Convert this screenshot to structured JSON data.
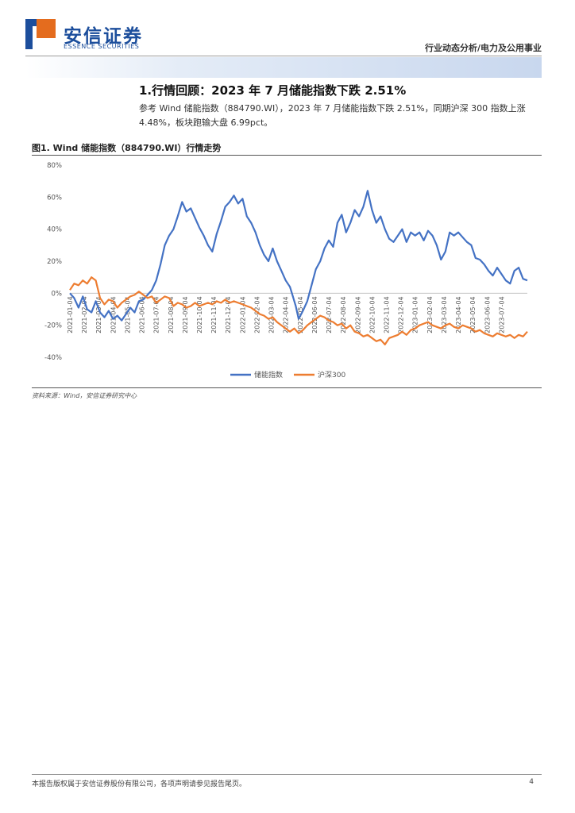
{
  "brand": {
    "name_cn": "安信证券",
    "name_en": "ESSENCE SECURITIES"
  },
  "header": {
    "category": "行业动态分析/电力及公用事业"
  },
  "section": {
    "title": "1.行情回顾：2023 年 7 月储能指数下跌 2.51%",
    "body": "参考 Wind 储能指数（884790.WI），2023 年 7 月储能指数下跌 2.51%，同期沪深 300 指数上涨 4.48%，板块跑输大盘 6.99pct。"
  },
  "figure": {
    "title": "图1. Wind 储能指数（884790.WI）行情走势",
    "source": "资料来源：Wind，安信证券研究中心"
  },
  "chart_data": {
    "type": "line",
    "title": "",
    "xlabel": "",
    "ylabel": "",
    "y_ticks": [
      "80%",
      "60%",
      "40%",
      "20%",
      "0%",
      "-20%",
      "-40%"
    ],
    "y_tick_values": [
      80,
      60,
      40,
      20,
      0,
      -20,
      -40
    ],
    "ylim": [
      -40,
      80
    ],
    "x_tick_labels": [
      "2021-01-04",
      "2021-02-04",
      "2021-03-04",
      "2021-04-04",
      "2021-05-04",
      "2021-06-04",
      "2021-07-04",
      "2021-08-04",
      "2021-09-04",
      "2021-10-04",
      "2021-11-04",
      "2021-12-04",
      "2022-01-04",
      "2022-02-04",
      "2022-03-04",
      "2022-04-04",
      "2022-05-04",
      "2022-06-04",
      "2022-07-04",
      "2022-08-04",
      "2022-09-04",
      "2022-10-04",
      "2022-11-04",
      "2022-12-04",
      "2023-01-04",
      "2023-02-04",
      "2023-03-04",
      "2023-04-04",
      "2023-05-04",
      "2023-06-04",
      "2023-07-04"
    ],
    "x_months": [
      0,
      1,
      2,
      3,
      4,
      5,
      6,
      7,
      8,
      9,
      10,
      11,
      12,
      13,
      14,
      15,
      16,
      17,
      18,
      19,
      20,
      21,
      22,
      23,
      24,
      25,
      26,
      27,
      28,
      29,
      30
    ],
    "legend_position": "bottom",
    "grid": false,
    "series": [
      {
        "name": "储能指数",
        "color": "#4472c4",
        "points": [
          [
            0,
            0
          ],
          [
            0.3,
            -3
          ],
          [
            0.6,
            -9
          ],
          [
            0.9,
            -2
          ],
          [
            1.2,
            -10
          ],
          [
            1.5,
            -12
          ],
          [
            1.8,
            -5
          ],
          [
            2.1,
            -12
          ],
          [
            2.4,
            -15
          ],
          [
            2.7,
            -11
          ],
          [
            3.0,
            -16
          ],
          [
            3.3,
            -14
          ],
          [
            3.6,
            -17
          ],
          [
            3.9,
            -13
          ],
          [
            4.2,
            -9
          ],
          [
            4.5,
            -12
          ],
          [
            4.8,
            -5
          ],
          [
            5.1,
            -4
          ],
          [
            5.4,
            -1
          ],
          [
            5.7,
            2
          ],
          [
            6.0,
            8
          ],
          [
            6.3,
            18
          ],
          [
            6.6,
            30
          ],
          [
            6.9,
            36
          ],
          [
            7.2,
            40
          ],
          [
            7.5,
            48
          ],
          [
            7.8,
            57
          ],
          [
            8.1,
            51
          ],
          [
            8.4,
            53
          ],
          [
            8.7,
            47
          ],
          [
            9.0,
            41
          ],
          [
            9.3,
            36
          ],
          [
            9.6,
            30
          ],
          [
            9.9,
            26
          ],
          [
            10.2,
            37
          ],
          [
            10.5,
            45
          ],
          [
            10.8,
            54
          ],
          [
            11.1,
            57
          ],
          [
            11.4,
            61
          ],
          [
            11.7,
            56
          ],
          [
            12.0,
            59
          ],
          [
            12.3,
            48
          ],
          [
            12.6,
            44
          ],
          [
            12.9,
            38
          ],
          [
            13.2,
            30
          ],
          [
            13.5,
            24
          ],
          [
            13.8,
            20
          ],
          [
            14.1,
            28
          ],
          [
            14.4,
            20
          ],
          [
            14.7,
            14
          ],
          [
            15.0,
            8
          ],
          [
            15.3,
            4
          ],
          [
            15.5,
            -2
          ],
          [
            15.7,
            -8
          ],
          [
            15.9,
            -16
          ],
          [
            16.2,
            -11
          ],
          [
            16.5,
            -5
          ],
          [
            16.8,
            5
          ],
          [
            17.1,
            15
          ],
          [
            17.4,
            20
          ],
          [
            17.7,
            28
          ],
          [
            18.0,
            33
          ],
          [
            18.3,
            29
          ],
          [
            18.6,
            44
          ],
          [
            18.9,
            49
          ],
          [
            19.2,
            38
          ],
          [
            19.5,
            44
          ],
          [
            19.8,
            52
          ],
          [
            20.1,
            48
          ],
          [
            20.4,
            54
          ],
          [
            20.7,
            64
          ],
          [
            21.0,
            52
          ],
          [
            21.3,
            44
          ],
          [
            21.6,
            48
          ],
          [
            21.9,
            40
          ],
          [
            22.2,
            34
          ],
          [
            22.5,
            32
          ],
          [
            22.8,
            36
          ],
          [
            23.1,
            40
          ],
          [
            23.4,
            32
          ],
          [
            23.7,
            38
          ],
          [
            24.0,
            36
          ],
          [
            24.3,
            38
          ],
          [
            24.6,
            33
          ],
          [
            24.9,
            39
          ],
          [
            25.2,
            36
          ],
          [
            25.5,
            30
          ],
          [
            25.8,
            21
          ],
          [
            26.1,
            26
          ],
          [
            26.4,
            38
          ],
          [
            26.7,
            36
          ],
          [
            27.0,
            38
          ],
          [
            27.3,
            35
          ],
          [
            27.6,
            32
          ],
          [
            27.9,
            30
          ],
          [
            28.2,
            22
          ],
          [
            28.5,
            21
          ],
          [
            28.8,
            18
          ],
          [
            29.1,
            14
          ],
          [
            29.4,
            11
          ],
          [
            29.7,
            16
          ],
          [
            30.0,
            12
          ],
          [
            30.3,
            8
          ],
          [
            30.6,
            6
          ],
          [
            30.9,
            14
          ],
          [
            31.2,
            16
          ],
          [
            31.5,
            9
          ],
          [
            31.8,
            8
          ]
        ]
      },
      {
        "name": "沪深300",
        "color": "#ed7d31",
        "points": [
          [
            0,
            2
          ],
          [
            0.3,
            6
          ],
          [
            0.6,
            5
          ],
          [
            0.9,
            8
          ],
          [
            1.2,
            6
          ],
          [
            1.5,
            10
          ],
          [
            1.8,
            8
          ],
          [
            2.1,
            -3
          ],
          [
            2.4,
            -7
          ],
          [
            2.7,
            -4
          ],
          [
            3.0,
            -5
          ],
          [
            3.3,
            -9
          ],
          [
            3.6,
            -6
          ],
          [
            3.9,
            -4
          ],
          [
            4.2,
            -2
          ],
          [
            4.5,
            -1
          ],
          [
            4.8,
            1
          ],
          [
            5.1,
            -1
          ],
          [
            5.4,
            -3
          ],
          [
            5.7,
            -2
          ],
          [
            6.0,
            -6
          ],
          [
            6.3,
            -4
          ],
          [
            6.6,
            -2
          ],
          [
            6.9,
            -3
          ],
          [
            7.2,
            -8
          ],
          [
            7.5,
            -6
          ],
          [
            7.8,
            -7
          ],
          [
            8.1,
            -9
          ],
          [
            8.4,
            -8
          ],
          [
            8.7,
            -6
          ],
          [
            9.0,
            -8
          ],
          [
            9.3,
            -7
          ],
          [
            9.6,
            -6
          ],
          [
            9.9,
            -7
          ],
          [
            10.2,
            -5
          ],
          [
            10.5,
            -6
          ],
          [
            10.8,
            -4
          ],
          [
            11.1,
            -6
          ],
          [
            11.4,
            -5
          ],
          [
            11.7,
            -6
          ],
          [
            12.0,
            -7
          ],
          [
            12.3,
            -8
          ],
          [
            12.6,
            -9
          ],
          [
            12.9,
            -11
          ],
          [
            13.2,
            -13
          ],
          [
            13.5,
            -14
          ],
          [
            13.8,
            -16
          ],
          [
            14.1,
            -15
          ],
          [
            14.4,
            -18
          ],
          [
            14.7,
            -20
          ],
          [
            15.0,
            -22
          ],
          [
            15.3,
            -24
          ],
          [
            15.6,
            -22
          ],
          [
            15.9,
            -25
          ],
          [
            16.2,
            -23
          ],
          [
            16.5,
            -20
          ],
          [
            16.8,
            -18
          ],
          [
            17.1,
            -16
          ],
          [
            17.4,
            -14
          ],
          [
            17.7,
            -15
          ],
          [
            18.0,
            -17
          ],
          [
            18.3,
            -18
          ],
          [
            18.6,
            -20
          ],
          [
            18.9,
            -19
          ],
          [
            19.2,
            -22
          ],
          [
            19.5,
            -20
          ],
          [
            19.8,
            -24
          ],
          [
            20.1,
            -25
          ],
          [
            20.4,
            -27
          ],
          [
            20.7,
            -26
          ],
          [
            21.0,
            -28
          ],
          [
            21.3,
            -30
          ],
          [
            21.6,
            -29
          ],
          [
            21.9,
            -32
          ],
          [
            22.2,
            -28
          ],
          [
            22.5,
            -27
          ],
          [
            22.8,
            -26
          ],
          [
            23.1,
            -24
          ],
          [
            23.4,
            -26
          ],
          [
            23.7,
            -23
          ],
          [
            24.0,
            -22
          ],
          [
            24.3,
            -20
          ],
          [
            24.6,
            -19
          ],
          [
            24.9,
            -18
          ],
          [
            25.2,
            -20
          ],
          [
            25.5,
            -21
          ],
          [
            25.8,
            -22
          ],
          [
            26.1,
            -20
          ],
          [
            26.4,
            -19
          ],
          [
            26.7,
            -21
          ],
          [
            27.0,
            -22
          ],
          [
            27.3,
            -20
          ],
          [
            27.6,
            -21
          ],
          [
            27.9,
            -22
          ],
          [
            28.2,
            -24
          ],
          [
            28.5,
            -23
          ],
          [
            28.8,
            -25
          ],
          [
            29.1,
            -26
          ],
          [
            29.4,
            -27
          ],
          [
            29.7,
            -25
          ],
          [
            30.0,
            -26
          ],
          [
            30.3,
            -27
          ],
          [
            30.6,
            -26
          ],
          [
            30.9,
            -28
          ],
          [
            31.2,
            -26
          ],
          [
            31.5,
            -27
          ],
          [
            31.8,
            -24
          ]
        ]
      }
    ]
  },
  "footer": {
    "disclaimer": "本报告版权属于安信证券股份有限公司，各项声明请参见报告尾页。",
    "page": "4"
  }
}
